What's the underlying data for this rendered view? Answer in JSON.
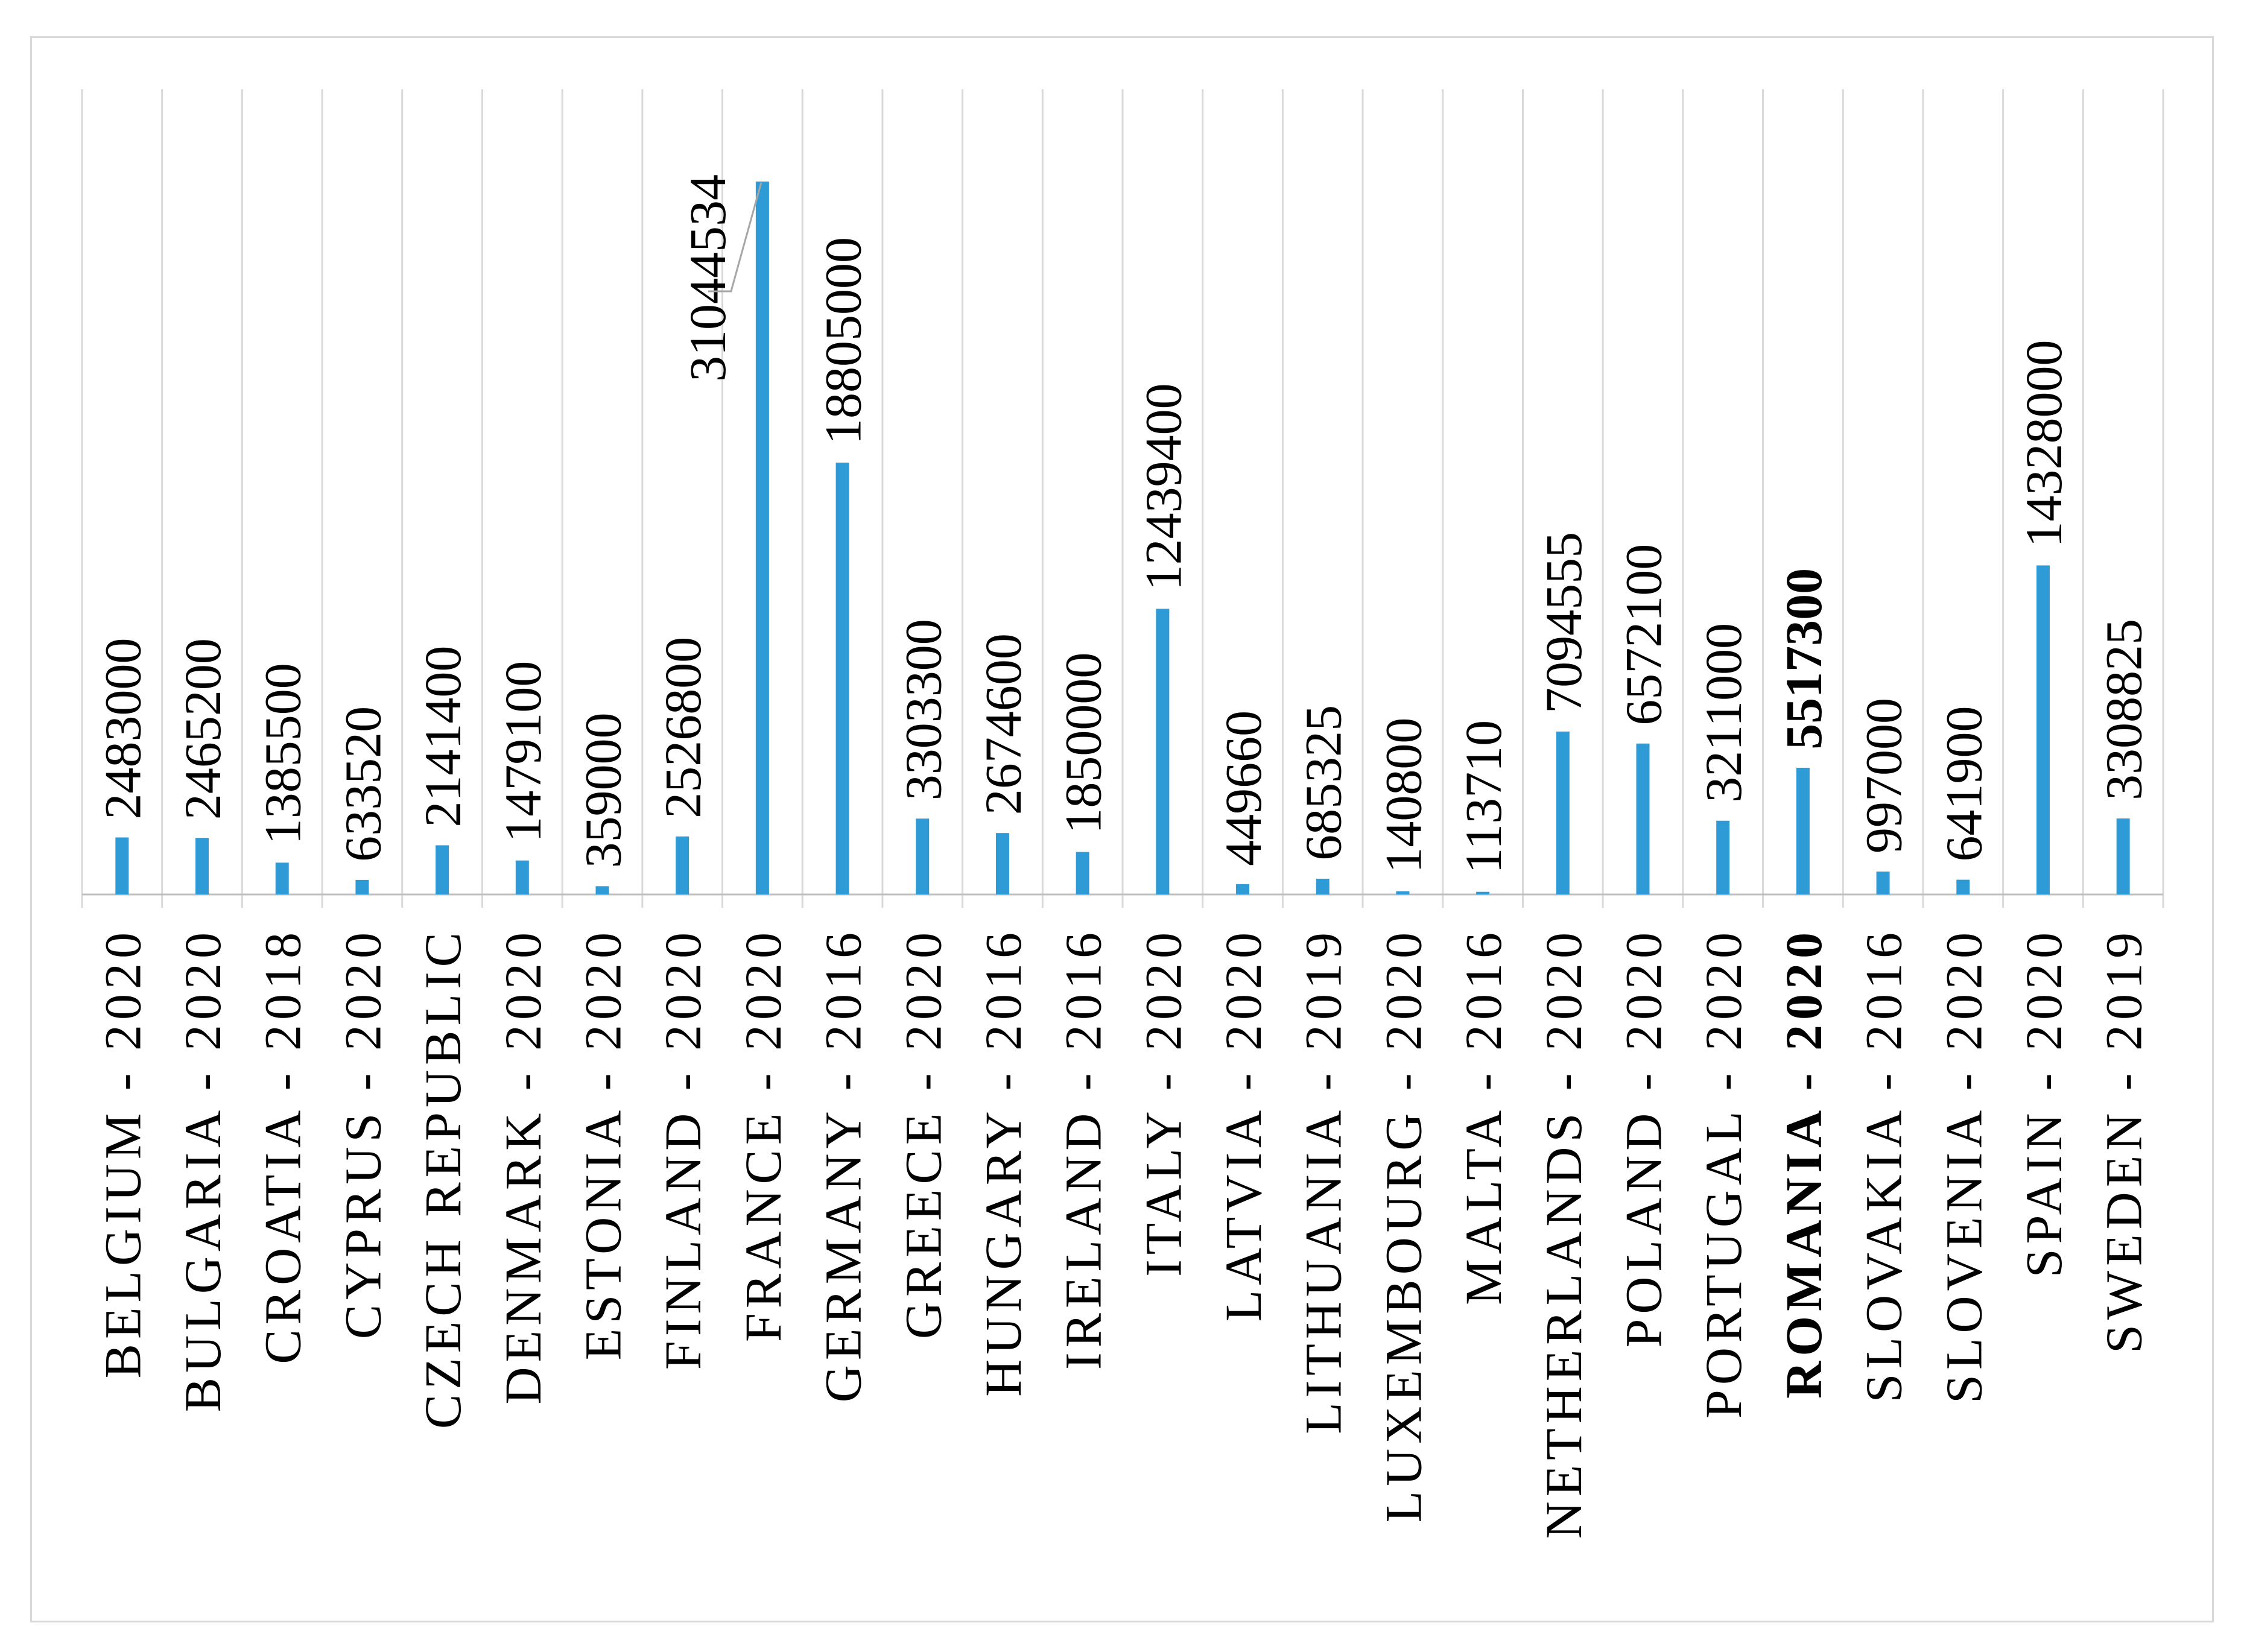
{
  "chart_data": {
    "type": "bar",
    "title": "",
    "xlabel": "",
    "ylabel": "",
    "ylim": [
      0,
      31044534
    ],
    "grid": true,
    "bar_color": "#2e9bd6",
    "highlight_category": "ROMANIA - 2020",
    "categories": [
      "BELGIUM - 2020",
      "BULGARIA - 2020",
      "CROATIA - 2018",
      "CYPRUS - 2020",
      "CZECH REPUBLIC",
      "DENMARK - 2020",
      "ESTONIA - 2020",
      "FINLAND - 2020",
      "FRANCE - 2020",
      "GERMANY - 2016",
      "GREECE - 2020",
      "HUNGARY - 2016",
      "IRELAND - 2016",
      "ITALY - 2020",
      "LATVIA - 2020",
      "LITHUANIA - 2019",
      "LUXEMBOURG - 2020",
      "MALTA - 2016",
      "NETHERLANDS - 2020",
      "POLAND - 2020",
      "PORTUGAL - 2020",
      "ROMANIA - 2020",
      "SLOVAKIA - 2016",
      "SLOVENIA - 2020",
      "SPAIN - 2020",
      "SWEDEN - 2019"
    ],
    "values": [
      2483000,
      2465200,
      1385500,
      633520,
      2141400,
      1479100,
      359000,
      2526800,
      31044534,
      18805000,
      3303300,
      2674600,
      1850000,
      12439400,
      449660,
      685325,
      140800,
      113710,
      7094555,
      6572100,
      3211000,
      5517300,
      997000,
      641900,
      14328000,
      3308825
    ],
    "data_labels": [
      "2483000",
      "2465200",
      "1385500",
      "633520",
      "2141400",
      "1479100",
      "359000",
      "2526800",
      "31044534",
      "18805000",
      "3303300",
      "2674600",
      "1850000",
      "12439400",
      "449660",
      "685325",
      "140800",
      "113710",
      "7094555",
      "6572100",
      "3211000",
      "5517300",
      "997000",
      "641900",
      "14328000",
      "3308825"
    ]
  }
}
